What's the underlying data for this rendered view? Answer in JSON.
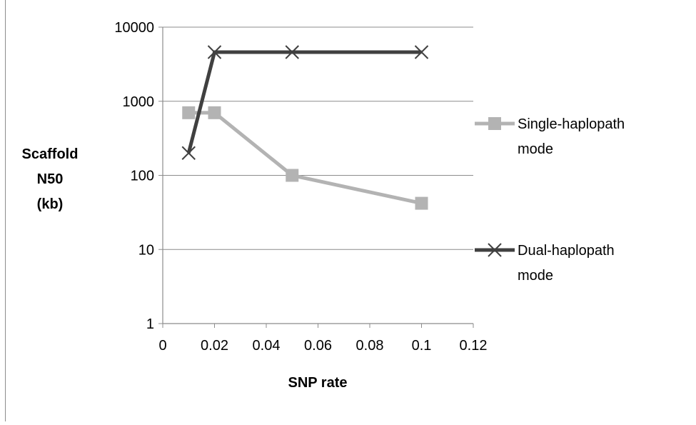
{
  "chart_data": {
    "type": "line",
    "title": "",
    "xlabel": "SNP rate",
    "ylabel_lines": [
      "Scaffold",
      "N50",
      "(kb)"
    ],
    "y_scale": "log10",
    "xlim": [
      0,
      0.12
    ],
    "ylim": [
      1,
      10000
    ],
    "x_ticks": [
      0,
      0.02,
      0.04,
      0.06,
      0.08,
      0.1,
      0.12
    ],
    "x_tick_labels": [
      "0",
      "0.02",
      "0.04",
      "0.06",
      "0.08",
      "0.1",
      "0.12"
    ],
    "y_ticks": [
      1,
      10,
      100,
      1000,
      10000
    ],
    "y_tick_labels": [
      "1",
      "10",
      "100",
      "1000",
      "10000"
    ],
    "grid": "horizontal major gridlines",
    "legend_position": "right",
    "series": [
      {
        "name_lines": [
          "Single-haplopath",
          "mode"
        ],
        "color": "#b3b3b3",
        "marker": "square",
        "x": [
          0.01,
          0.02,
          0.05,
          0.1
        ],
        "y": [
          700,
          700,
          100,
          42
        ]
      },
      {
        "name_lines": [
          "Dual-haplopath",
          "mode"
        ],
        "color": "#404040",
        "marker": "x",
        "x": [
          0.01,
          0.02,
          0.05,
          0.1
        ],
        "y": [
          200,
          4600,
          4600,
          4600
        ]
      }
    ]
  }
}
